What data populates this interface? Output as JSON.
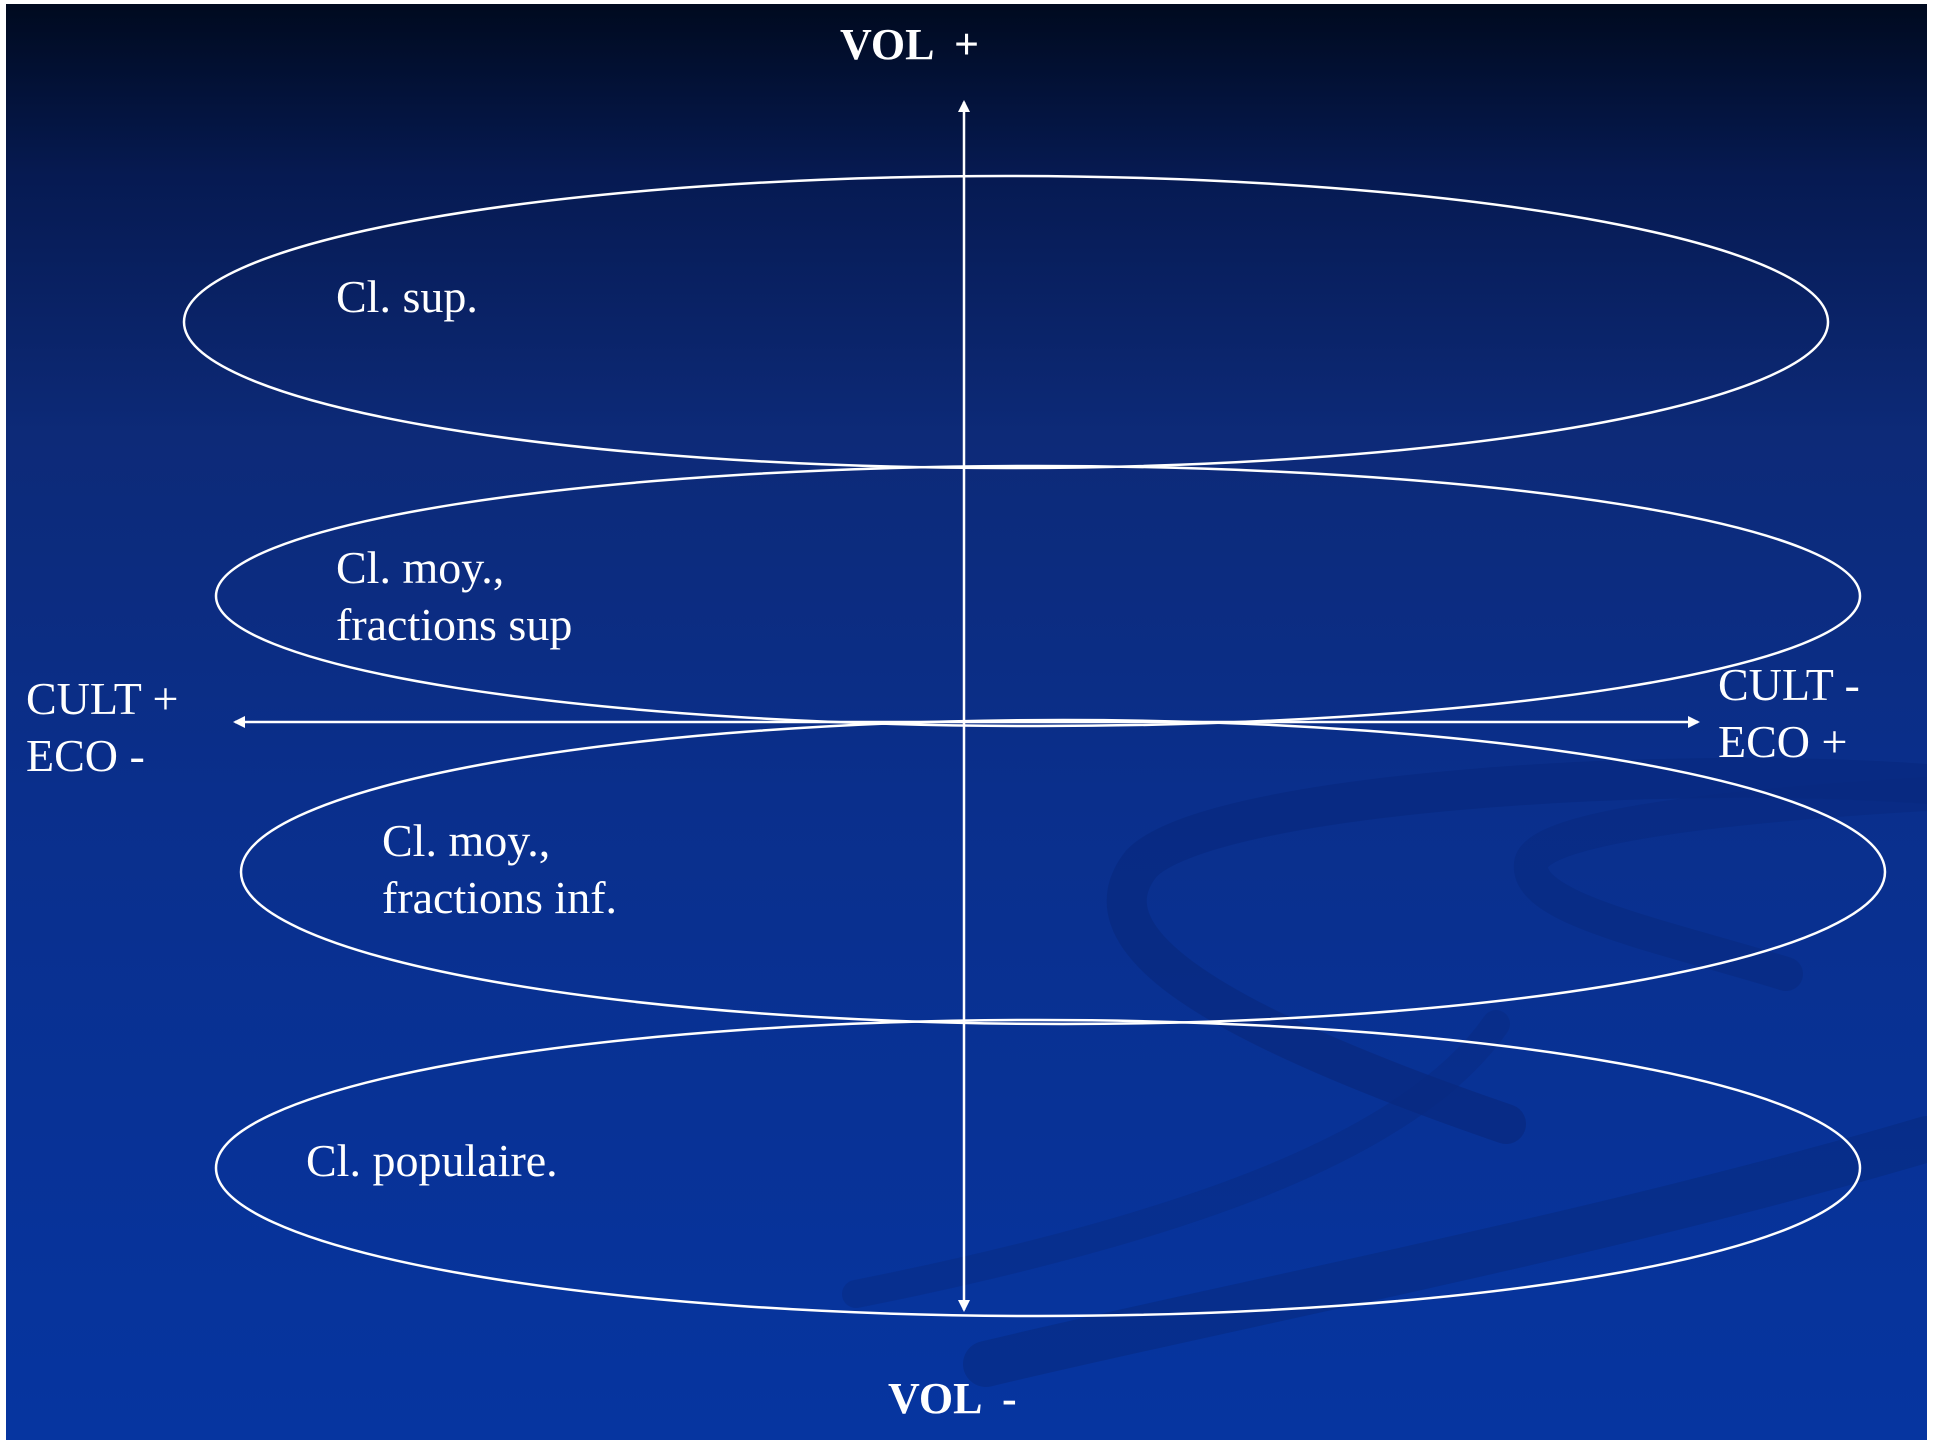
{
  "diagram": {
    "axes": {
      "vertical": {
        "top_label": "VOL  +",
        "bottom_label": "VOL  -"
      },
      "horizontal": {
        "left_label_line1": "CULT +",
        "left_label_line2": "ECO -",
        "right_label_line1": "CULT -",
        "right_label_line2": "ECO +"
      }
    },
    "classes": [
      {
        "line1": "Cl. sup.",
        "line2": ""
      },
      {
        "line1": "Cl. moy.,",
        "line2": "fractions sup"
      },
      {
        "line1": "Cl. moy.,",
        "line2": "fractions inf."
      },
      {
        "line1": "Cl. populaire.",
        "line2": ""
      }
    ],
    "colors": {
      "background_top": "#000a1f",
      "background_bottom": "#0635a0",
      "foreground": "#ffffff"
    }
  }
}
